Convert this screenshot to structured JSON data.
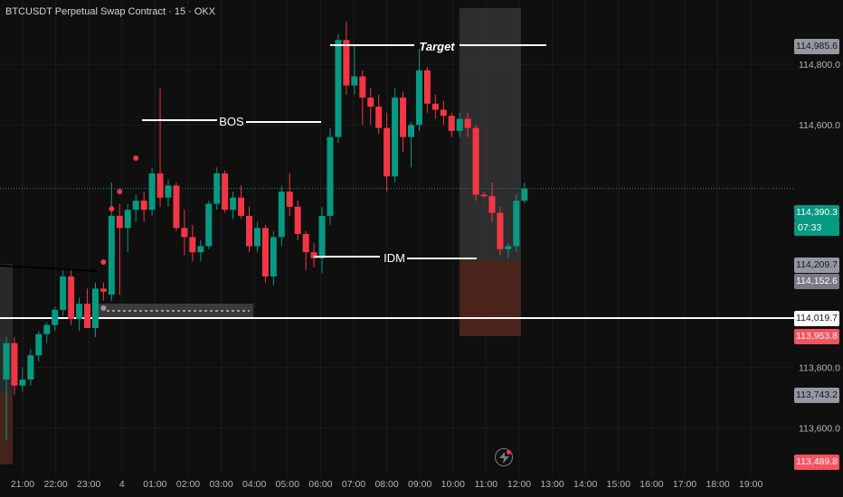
{
  "symbol_title": "BTCUSDT Perpetual Swap Contract · 15 · OKX",
  "colors": {
    "background": "#0f0f0f",
    "up": "#089981",
    "down": "#f23645",
    "grid": "#1c1c1c",
    "text": "#b2b5be"
  },
  "price_labels": {
    "top_level": "114,985.6",
    "current_price": "114,390.3",
    "countdown": "07:33",
    "level_a": "114,209.7",
    "level_b": "114,152.6",
    "white_line": "114,019.7",
    "stop_level": "113,953.8",
    "low_level": "113,743.2",
    "bottom_level": "113,489.8"
  },
  "annotations": {
    "target": "Target",
    "bos": "BOS",
    "idm": "IDM"
  },
  "chart_data": {
    "type": "candlestick",
    "title": "BTCUSDT Perpetual Swap Contract · 15 · OKX",
    "y_ticks": [
      "114,800.0",
      "114,600.0",
      "113,800.0",
      "113,600.0"
    ],
    "y_tick_values": [
      114800,
      114600,
      113800,
      113600
    ],
    "ylim": [
      113480,
      115000
    ],
    "x_ticks": [
      "21:00",
      "22:00",
      "23:00",
      "4",
      "01:00",
      "02:00",
      "03:00",
      "04:00",
      "05:00",
      "06:00",
      "07:00",
      "08:00",
      "09:00",
      "10:00",
      "11:00",
      "12:00",
      "13:00",
      "14:00",
      "15:00",
      "16:00",
      "17:00",
      "18:00",
      "19:00"
    ],
    "grid": true,
    "levels": {
      "target": 114985.6,
      "current": 114390.3,
      "entry": 114152.6,
      "white_line": 114019.7,
      "stop": 113953.8,
      "idm": 114270,
      "bos": 114730
    },
    "candles": [
      {
        "o": 113760,
        "h": 113900,
        "l": 113560,
        "c": 113880
      },
      {
        "o": 113880,
        "h": 113900,
        "l": 113710,
        "c": 113740
      },
      {
        "o": 113740,
        "h": 113800,
        "l": 113720,
        "c": 113760
      },
      {
        "o": 113760,
        "h": 113860,
        "l": 113740,
        "c": 113840
      },
      {
        "o": 113840,
        "h": 113920,
        "l": 113820,
        "c": 113910
      },
      {
        "o": 113910,
        "h": 113950,
        "l": 113880,
        "c": 113940
      },
      {
        "o": 113940,
        "h": 114000,
        "l": 113920,
        "c": 113990
      },
      {
        "o": 113990,
        "h": 114120,
        "l": 113970,
        "c": 114100
      },
      {
        "o": 114100,
        "h": 114120,
        "l": 113940,
        "c": 113960
      },
      {
        "o": 113960,
        "h": 114030,
        "l": 113920,
        "c": 114010
      },
      {
        "o": 114010,
        "h": 114060,
        "l": 113930,
        "c": 113930
      },
      {
        "o": 113930,
        "h": 114080,
        "l": 113900,
        "c": 114060
      },
      {
        "o": 114060,
        "h": 114080,
        "l": 114020,
        "c": 114050
      },
      {
        "o": 114040,
        "h": 114410,
        "l": 114020,
        "c": 114300
      },
      {
        "o": 114300,
        "h": 114340,
        "l": 114040,
        "c": 114260
      },
      {
        "o": 114260,
        "h": 114340,
        "l": 114180,
        "c": 114320
      },
      {
        "o": 114320,
        "h": 114370,
        "l": 114280,
        "c": 114350
      },
      {
        "o": 114350,
        "h": 114380,
        "l": 114280,
        "c": 114320
      },
      {
        "o": 114320,
        "h": 114460,
        "l": 114300,
        "c": 114440
      },
      {
        "o": 114440,
        "h": 114720,
        "l": 114330,
        "c": 114360
      },
      {
        "o": 114360,
        "h": 114420,
        "l": 114330,
        "c": 114400
      },
      {
        "o": 114400,
        "h": 114410,
        "l": 114250,
        "c": 114260
      },
      {
        "o": 114260,
        "h": 114320,
        "l": 114170,
        "c": 114230
      },
      {
        "o": 114230,
        "h": 114270,
        "l": 114150,
        "c": 114180
      },
      {
        "o": 114180,
        "h": 114220,
        "l": 114150,
        "c": 114200
      },
      {
        "o": 114200,
        "h": 114350,
        "l": 114190,
        "c": 114340
      },
      {
        "o": 114340,
        "h": 114460,
        "l": 114320,
        "c": 114440
      },
      {
        "o": 114440,
        "h": 114450,
        "l": 114310,
        "c": 114320
      },
      {
        "o": 114320,
        "h": 114380,
        "l": 114290,
        "c": 114360
      },
      {
        "o": 114360,
        "h": 114400,
        "l": 114290,
        "c": 114300
      },
      {
        "o": 114300,
        "h": 114330,
        "l": 114180,
        "c": 114200
      },
      {
        "o": 114200,
        "h": 114280,
        "l": 114180,
        "c": 114260
      },
      {
        "o": 114260,
        "h": 114270,
        "l": 114080,
        "c": 114100
      },
      {
        "o": 114100,
        "h": 114250,
        "l": 114070,
        "c": 114230
      },
      {
        "o": 114230,
        "h": 114400,
        "l": 114200,
        "c": 114380
      },
      {
        "o": 114380,
        "h": 114440,
        "l": 114300,
        "c": 114330
      },
      {
        "o": 114330,
        "h": 114350,
        "l": 114220,
        "c": 114240
      },
      {
        "o": 114240,
        "h": 114250,
        "l": 114120,
        "c": 114180
      },
      {
        "o": 114180,
        "h": 114210,
        "l": 114130,
        "c": 114160
      },
      {
        "o": 114160,
        "h": 114330,
        "l": 114110,
        "c": 114300
      },
      {
        "o": 114300,
        "h": 114590,
        "l": 114270,
        "c": 114560
      },
      {
        "o": 114560,
        "h": 114900,
        "l": 114540,
        "c": 114880
      },
      {
        "o": 114880,
        "h": 114940,
        "l": 114700,
        "c": 114730
      },
      {
        "o": 114730,
        "h": 114860,
        "l": 114700,
        "c": 114760
      },
      {
        "o": 114760,
        "h": 114780,
        "l": 114600,
        "c": 114690
      },
      {
        "o": 114690,
        "h": 114720,
        "l": 114600,
        "c": 114660
      },
      {
        "o": 114660,
        "h": 114700,
        "l": 114570,
        "c": 114590
      },
      {
        "o": 114590,
        "h": 114640,
        "l": 114380,
        "c": 114430
      },
      {
        "o": 114430,
        "h": 114720,
        "l": 114410,
        "c": 114690
      },
      {
        "o": 114690,
        "h": 114710,
        "l": 114510,
        "c": 114560
      },
      {
        "o": 114560,
        "h": 114610,
        "l": 114460,
        "c": 114600
      },
      {
        "o": 114600,
        "h": 114850,
        "l": 114580,
        "c": 114780
      },
      {
        "o": 114780,
        "h": 114790,
        "l": 114640,
        "c": 114670
      },
      {
        "o": 114670,
        "h": 114700,
        "l": 114620,
        "c": 114650
      },
      {
        "o": 114650,
        "h": 114680,
        "l": 114600,
        "c": 114630
      },
      {
        "o": 114630,
        "h": 114640,
        "l": 114560,
        "c": 114580
      },
      {
        "o": 114580,
        "h": 114640,
        "l": 114560,
        "c": 114620
      },
      {
        "o": 114620,
        "h": 114640,
        "l": 114560,
        "c": 114590
      },
      {
        "o": 114590,
        "h": 114600,
        "l": 114350,
        "c": 114370
      },
      {
        "o": 114370,
        "h": 114380,
        "l": 114360,
        "c": 114365
      },
      {
        "o": 114365,
        "h": 114410,
        "l": 114280,
        "c": 114310
      },
      {
        "o": 114310,
        "h": 114330,
        "l": 114170,
        "c": 114190
      },
      {
        "o": 114190,
        "h": 114210,
        "l": 114160,
        "c": 114200
      },
      {
        "o": 114200,
        "h": 114370,
        "l": 114180,
        "c": 114350
      },
      {
        "o": 114350,
        "h": 114410,
        "l": 114340,
        "c": 114390
      }
    ]
  }
}
